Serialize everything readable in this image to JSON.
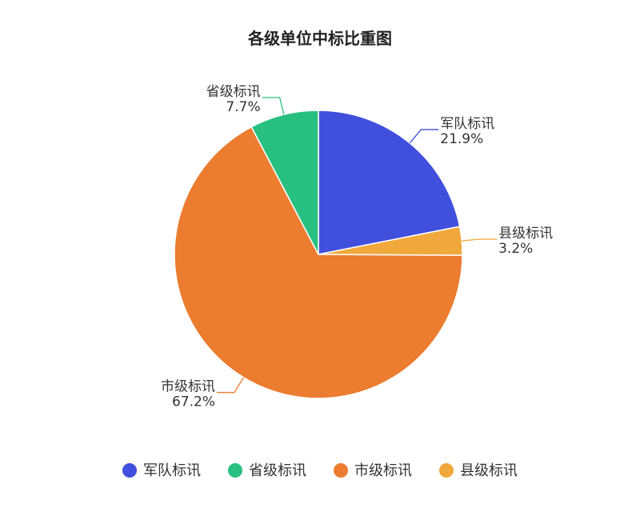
{
  "chart_data": {
    "type": "pie",
    "title": "各级单位中标比重图",
    "slices": [
      {
        "name": "军队标讯",
        "value": 21.9,
        "value_label": "21.9%",
        "color": "#4150DC"
      },
      {
        "name": "县级标讯",
        "value": 3.2,
        "value_label": "3.2%",
        "color": "#F0A83C"
      },
      {
        "name": "市级标讯",
        "value": 67.2,
        "value_label": "67.2%",
        "color": "#EC7C2F"
      },
      {
        "name": "省级标讯",
        "value": 7.7,
        "value_label": "7.7%",
        "color": "#28C080"
      }
    ],
    "legend": {
      "placement": "bottom",
      "items": [
        "军队标讯",
        "省级标讯",
        "市级标讯",
        "县级标讯"
      ]
    }
  }
}
